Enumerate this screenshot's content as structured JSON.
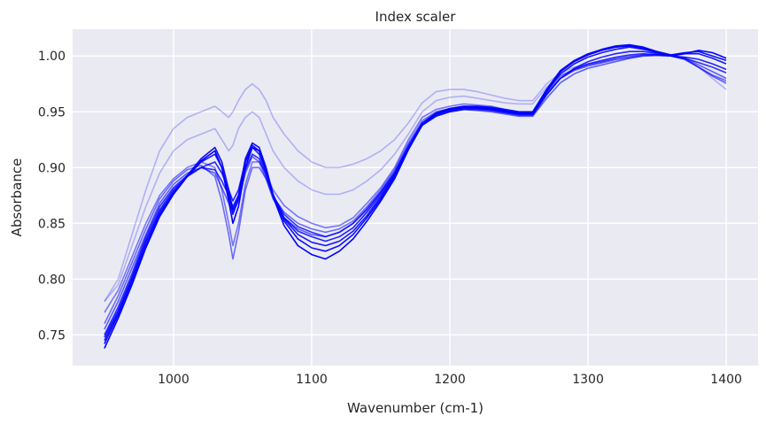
{
  "chart_data": {
    "type": "line",
    "title": "Index scaler",
    "xlabel": "Wavenumber (cm-1)",
    "ylabel": "Absorbance",
    "xlim": [
      927,
      1423
    ],
    "ylim": [
      0.7225,
      1.024
    ],
    "xticks": [
      1000,
      1100,
      1200,
      1300,
      1400
    ],
    "xtick_labels": [
      "1000",
      "1100",
      "1200",
      "1300",
      "1400"
    ],
    "yticks": [
      0.75,
      0.8,
      0.85,
      0.9,
      0.95,
      1.0
    ],
    "ytick_labels": [
      "0.75",
      "0.80",
      "0.85",
      "0.90",
      "0.95",
      "1.00"
    ],
    "grid": true,
    "legend": "none",
    "background": "#eaeaf2",
    "grid_color": "#ffffff",
    "line_color": "#0000ff",
    "x": [
      950,
      960,
      970,
      980,
      990,
      1000,
      1010,
      1020,
      1030,
      1035,
      1040,
      1043,
      1047,
      1052,
      1057,
      1062,
      1067,
      1072,
      1080,
      1090,
      1100,
      1110,
      1120,
      1130,
      1140,
      1150,
      1160,
      1170,
      1180,
      1190,
      1200,
      1210,
      1220,
      1230,
      1240,
      1250,
      1260,
      1270,
      1280,
      1290,
      1300,
      1310,
      1320,
      1330,
      1340,
      1350,
      1360,
      1370,
      1380,
      1390,
      1400
    ],
    "series": [
      {
        "opacity": 0.25,
        "values": [
          0.78,
          0.8,
          0.84,
          0.88,
          0.915,
          0.935,
          0.945,
          0.95,
          0.955,
          0.95,
          0.945,
          0.95,
          0.96,
          0.97,
          0.975,
          0.97,
          0.96,
          0.945,
          0.93,
          0.915,
          0.905,
          0.9,
          0.9,
          0.903,
          0.908,
          0.915,
          0.925,
          0.94,
          0.958,
          0.968,
          0.97,
          0.97,
          0.968,
          0.965,
          0.962,
          0.96,
          0.96,
          0.975,
          0.985,
          0.99,
          0.993,
          0.995,
          0.997,
          0.999,
          1.0,
          1.0,
          1.0,
          0.998,
          0.99,
          0.98,
          0.97
        ]
      },
      {
        "opacity": 0.25,
        "values": [
          0.78,
          0.795,
          0.83,
          0.865,
          0.895,
          0.915,
          0.925,
          0.93,
          0.935,
          0.925,
          0.915,
          0.92,
          0.935,
          0.945,
          0.95,
          0.945,
          0.93,
          0.915,
          0.9,
          0.888,
          0.88,
          0.876,
          0.876,
          0.88,
          0.888,
          0.898,
          0.912,
          0.93,
          0.95,
          0.96,
          0.963,
          0.964,
          0.962,
          0.96,
          0.958,
          0.957,
          0.957,
          0.972,
          0.983,
          0.988,
          0.992,
          0.994,
          0.996,
          0.998,
          1.0,
          1.0,
          1.0,
          0.997,
          0.99,
          0.982,
          0.975
        ]
      },
      {
        "opacity": 0.5,
        "values": [
          0.77,
          0.79,
          0.82,
          0.85,
          0.875,
          0.89,
          0.9,
          0.905,
          0.9,
          0.88,
          0.85,
          0.83,
          0.85,
          0.885,
          0.905,
          0.905,
          0.895,
          0.88,
          0.866,
          0.856,
          0.85,
          0.846,
          0.848,
          0.855,
          0.868,
          0.882,
          0.9,
          0.925,
          0.945,
          0.952,
          0.955,
          0.957,
          0.956,
          0.955,
          0.952,
          0.95,
          0.95,
          0.968,
          0.982,
          0.988,
          0.992,
          0.995,
          0.998,
          1.0,
          1.001,
          1.001,
          1.0,
          0.997,
          0.99,
          0.982,
          0.976
        ]
      },
      {
        "opacity": 0.55,
        "values": [
          0.76,
          0.785,
          0.815,
          0.845,
          0.872,
          0.888,
          0.898,
          0.902,
          0.892,
          0.87,
          0.84,
          0.818,
          0.842,
          0.88,
          0.9,
          0.9,
          0.89,
          0.874,
          0.86,
          0.85,
          0.845,
          0.842,
          0.845,
          0.852,
          0.865,
          0.88,
          0.898,
          0.922,
          0.942,
          0.95,
          0.953,
          0.955,
          0.954,
          0.952,
          0.95,
          0.948,
          0.948,
          0.966,
          0.98,
          0.987,
          0.991,
          0.994,
          0.997,
          0.999,
          1.001,
          1.001,
          1.0,
          0.997,
          0.99,
          0.983,
          0.978
        ]
      },
      {
        "opacity": 0.6,
        "values": [
          0.755,
          0.78,
          0.81,
          0.84,
          0.868,
          0.885,
          0.895,
          0.9,
          0.895,
          0.882,
          0.868,
          0.86,
          0.87,
          0.895,
          0.91,
          0.905,
          0.89,
          0.872,
          0.855,
          0.845,
          0.84,
          0.838,
          0.842,
          0.85,
          0.862,
          0.878,
          0.895,
          0.918,
          0.938,
          0.946,
          0.95,
          0.952,
          0.951,
          0.95,
          0.948,
          0.946,
          0.946,
          0.962,
          0.976,
          0.984,
          0.989,
          0.992,
          0.995,
          0.998,
          1.0,
          1.001,
          1.0,
          0.998,
          0.992,
          0.986,
          0.98
        ]
      },
      {
        "opacity": 0.8,
        "values": [
          0.75,
          0.775,
          0.805,
          0.838,
          0.865,
          0.882,
          0.893,
          0.9,
          0.898,
          0.888,
          0.875,
          0.865,
          0.875,
          0.898,
          0.912,
          0.908,
          0.893,
          0.875,
          0.858,
          0.847,
          0.842,
          0.838,
          0.842,
          0.85,
          0.863,
          0.878,
          0.896,
          0.92,
          0.94,
          0.948,
          0.952,
          0.954,
          0.953,
          0.952,
          0.95,
          0.948,
          0.948,
          0.966,
          0.98,
          0.988,
          0.993,
          0.996,
          0.999,
          1.001,
          1.002,
          1.001,
          1.0,
          0.998,
          0.994,
          0.99,
          0.985
        ]
      },
      {
        "opacity": 0.85,
        "values": [
          0.748,
          0.772,
          0.802,
          0.835,
          0.862,
          0.88,
          0.892,
          0.9,
          0.905,
          0.895,
          0.88,
          0.87,
          0.88,
          0.905,
          0.918,
          0.912,
          0.895,
          0.875,
          0.855,
          0.843,
          0.838,
          0.834,
          0.838,
          0.846,
          0.86,
          0.876,
          0.894,
          0.918,
          0.938,
          0.946,
          0.95,
          0.952,
          0.952,
          0.951,
          0.949,
          0.947,
          0.947,
          0.965,
          0.98,
          0.989,
          0.995,
          0.999,
          1.002,
          1.004,
          1.004,
          1.002,
          1.0,
          0.999,
          0.997,
          0.993,
          0.988
        ]
      },
      {
        "opacity": 0.9,
        "values": [
          0.745,
          0.77,
          0.8,
          0.833,
          0.86,
          0.878,
          0.892,
          0.905,
          0.912,
          0.9,
          0.875,
          0.858,
          0.872,
          0.905,
          0.92,
          0.915,
          0.898,
          0.876,
          0.854,
          0.84,
          0.833,
          0.83,
          0.834,
          0.843,
          0.857,
          0.874,
          0.893,
          0.918,
          0.938,
          0.947,
          0.951,
          0.953,
          0.953,
          0.952,
          0.95,
          0.948,
          0.948,
          0.968,
          0.984,
          0.993,
          0.999,
          1.003,
          1.006,
          1.008,
          1.006,
          1.003,
          1.001,
          1.002,
          1.002,
          0.998,
          0.993
        ]
      },
      {
        "opacity": 0.95,
        "values": [
          0.742,
          0.768,
          0.798,
          0.83,
          0.858,
          0.877,
          0.893,
          0.908,
          0.918,
          0.905,
          0.88,
          0.862,
          0.875,
          0.908,
          0.922,
          0.918,
          0.9,
          0.876,
          0.852,
          0.836,
          0.828,
          0.825,
          0.83,
          0.84,
          0.855,
          0.872,
          0.892,
          0.918,
          0.94,
          0.949,
          0.953,
          0.955,
          0.955,
          0.954,
          0.952,
          0.95,
          0.95,
          0.97,
          0.987,
          0.996,
          1.002,
          1.006,
          1.009,
          1.01,
          1.008,
          1.004,
          1.001,
          1.003,
          1.004,
          1.0,
          0.996
        ]
      },
      {
        "opacity": 1.0,
        "values": [
          0.738,
          0.765,
          0.795,
          0.828,
          0.856,
          0.876,
          0.892,
          0.906,
          0.915,
          0.9,
          0.87,
          0.85,
          0.865,
          0.9,
          0.918,
          0.915,
          0.898,
          0.874,
          0.848,
          0.83,
          0.822,
          0.818,
          0.825,
          0.836,
          0.852,
          0.87,
          0.89,
          0.916,
          0.938,
          0.948,
          0.952,
          0.954,
          0.954,
          0.953,
          0.951,
          0.949,
          0.949,
          0.969,
          0.986,
          0.995,
          1.001,
          1.005,
          1.008,
          1.009,
          1.007,
          1.003,
          1.0,
          1.002,
          1.005,
          1.003,
          0.998
        ]
      }
    ]
  }
}
